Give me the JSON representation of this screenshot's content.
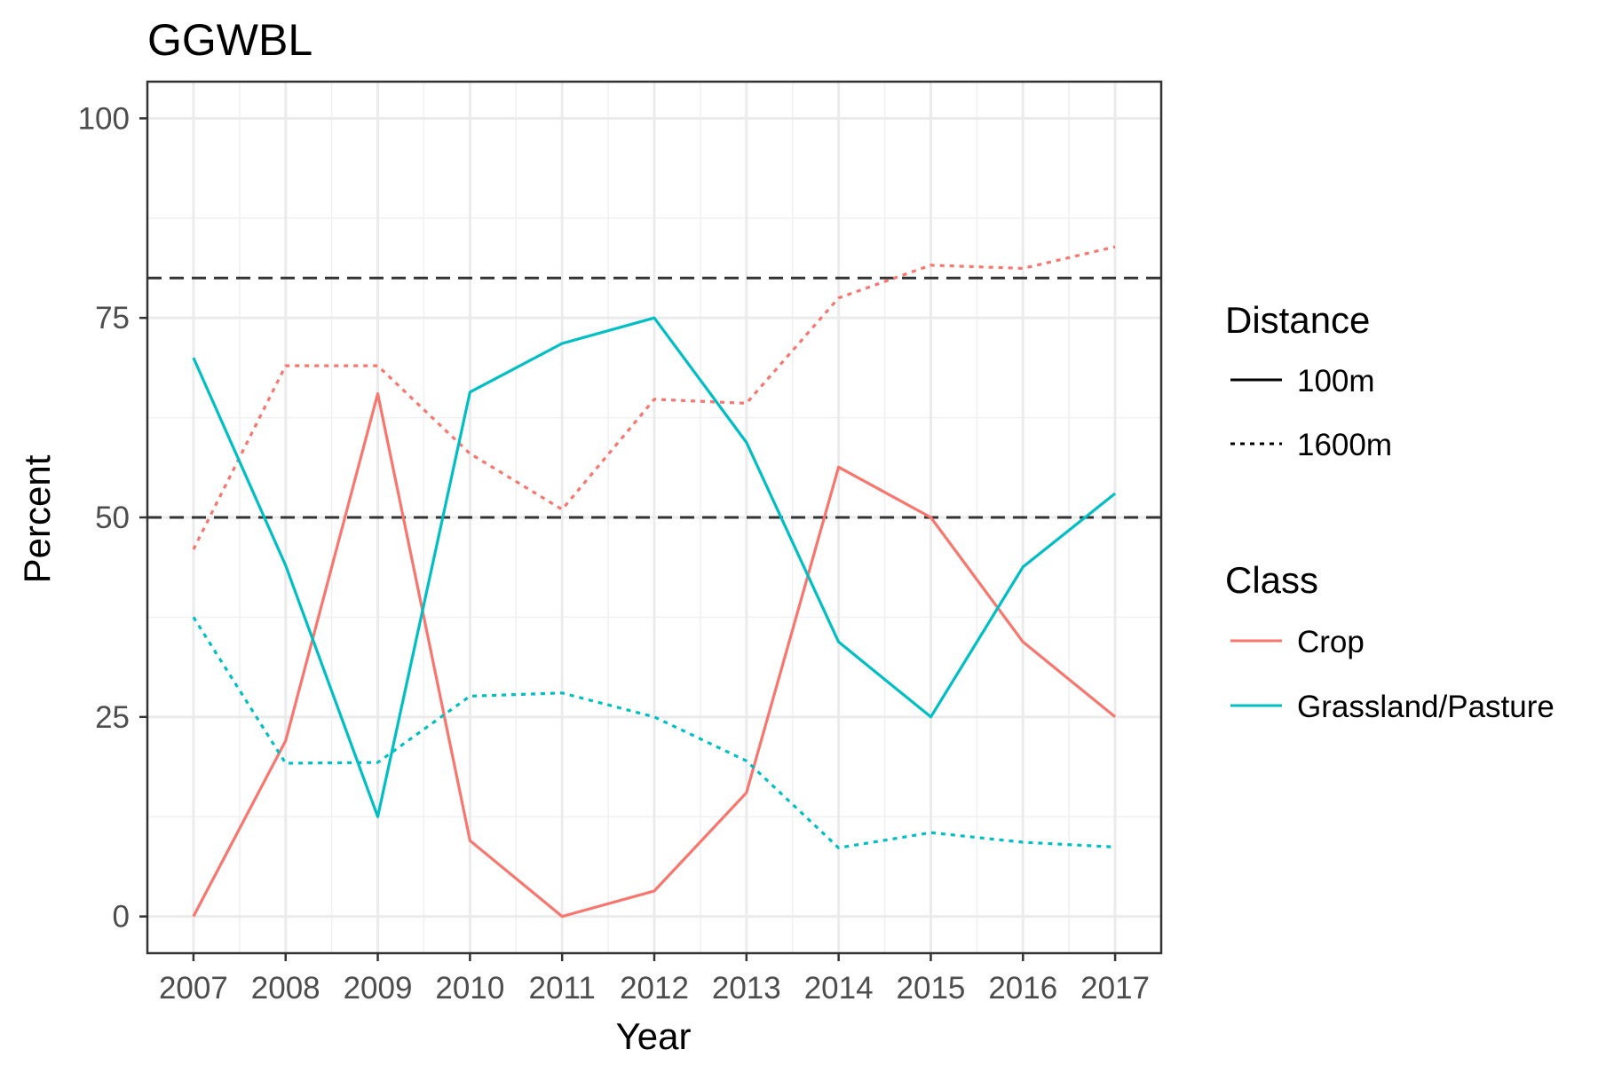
{
  "chart_data": {
    "type": "line",
    "title": "GGWBL",
    "xlabel": "Year",
    "ylabel": "Percent",
    "x": [
      2007,
      2008,
      2009,
      2010,
      2011,
      2012,
      2013,
      2014,
      2015,
      2016,
      2017
    ],
    "xlim": [
      2006.5,
      2017.5
    ],
    "ylim": [
      -4.6,
      104.6
    ],
    "yticks": [
      0,
      25,
      50,
      75,
      100
    ],
    "grid": true,
    "reference_lines": [
      50,
      80
    ],
    "series": [
      {
        "class": "Crop",
        "distance": "100m",
        "color": "#F8766D",
        "linetype": "solid",
        "values": [
          0,
          22,
          65.5,
          9.5,
          0,
          3.2,
          15.5,
          56.3,
          50,
          34.4,
          25
        ]
      },
      {
        "class": "Crop",
        "distance": "1600m",
        "color": "#F8766D",
        "linetype": "dotted",
        "values": [
          46,
          69,
          69,
          58,
          51,
          64.8,
          64.3,
          77.5,
          81.6,
          81.2,
          83.9
        ]
      },
      {
        "class": "Grassland/Pasture",
        "distance": "100m",
        "color": "#00BFC4",
        "linetype": "solid",
        "values": [
          70,
          44,
          12.5,
          65.7,
          71.8,
          75,
          59.4,
          34.4,
          25,
          43.8,
          53
        ]
      },
      {
        "class": "Grassland/Pasture",
        "distance": "1600m",
        "color": "#00BFC4",
        "linetype": "dotted",
        "values": [
          37.5,
          19.2,
          19.3,
          27.6,
          28,
          25,
          19.5,
          8.6,
          10.5,
          9.3,
          8.7
        ]
      }
    ],
    "legend": {
      "position": "right",
      "distance": {
        "title": "Distance",
        "items": [
          "100m",
          "1600m"
        ]
      },
      "class": {
        "title": "Class",
        "items": [
          {
            "label": "Crop",
            "color": "#F8766D"
          },
          {
            "label": "Grassland/Pasture",
            "color": "#00BFC4"
          }
        ]
      }
    }
  }
}
